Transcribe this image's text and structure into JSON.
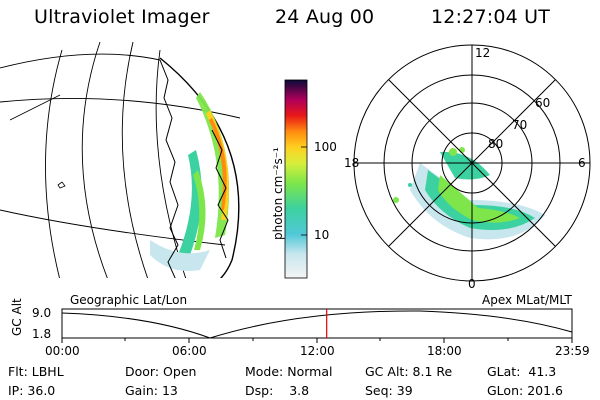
{
  "header": {
    "instrument": "Ultraviolet Imager",
    "date": "24 Aug 00",
    "time": "12:27:04 UT"
  },
  "colorbar": {
    "unit_label": "photon cm⁻²s⁻¹",
    "ticks": [
      "100",
      "10"
    ]
  },
  "polar_plot": {
    "lat_labels": [
      "80",
      "70",
      "60"
    ],
    "mlt_labels": [
      "12",
      "18",
      "6",
      "0"
    ]
  },
  "map_labels": {
    "left": "Geographic Lat/Lon",
    "right": "Apex MLat/MLT"
  },
  "timeline": {
    "y_label": "GC Alt",
    "y_max": "9.0",
    "y_min": "1.8",
    "x_ticks": [
      "00:00",
      "06:00",
      "12:00",
      "18:00",
      "23:59"
    ],
    "current_time_fraction": 0.519
  },
  "status": {
    "flt_label": "Flt:",
    "flt_value": "LBHL",
    "ip_label": "IP:",
    "ip_value": "36.0",
    "door_label": "Door:",
    "door_value": "Open",
    "gain_label": "Gain:",
    "gain_value": "13",
    "mode_label": "Mode:",
    "mode_value": "Normal",
    "dsp_label": "Dsp:",
    "dsp_value": "3.8",
    "gcalt_label": "GC Alt:",
    "gcalt_value": "8.1 Re",
    "seq_label": "Seq:",
    "seq_value": "39",
    "glat_label": "GLat:",
    "glat_value": "41.3",
    "glon_label": "GLon:",
    "glon_value": "201.6"
  }
}
